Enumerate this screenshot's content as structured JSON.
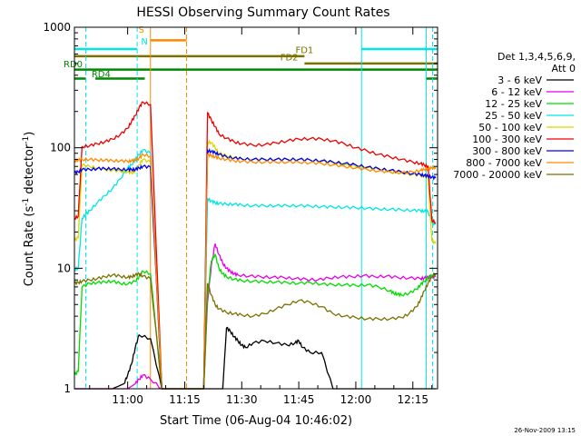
{
  "chart_data": {
    "type": "line",
    "title": "HESSI Observing Summary Count Rates",
    "xlabel": "Start Time (06-Aug-04 10:46:02)",
    "ylabel_main": "Count Rate (s",
    "ylabel_sup1": "-1",
    "ylabel_mid": " detector",
    "ylabel_sup2": "-1",
    "ylabel_end": ")",
    "footer": "26-Nov-2009 13:15",
    "xlim": [
      46.0,
      141.5
    ],
    "ylim": [
      1,
      1000
    ],
    "yscale": "log",
    "x_unit_note": "minutes after 10:00",
    "x_ticks": [
      {
        "value": 60,
        "label": "11:00"
      },
      {
        "value": 75,
        "label": "11:15"
      },
      {
        "value": 90,
        "label": "11:30"
      },
      {
        "value": 105,
        "label": "11:45"
      },
      {
        "value": 120,
        "label": "12:00"
      },
      {
        "value": 135,
        "label": "12:15"
      }
    ],
    "y_ticks": [
      {
        "value": 1,
        "label": "1"
      },
      {
        "value": 10,
        "label": "10"
      },
      {
        "value": 100,
        "label": "100"
      },
      {
        "value": 1000,
        "label": "1000"
      }
    ],
    "legend": {
      "header1": "Det 1,3,4,5,6,9,",
      "header2": "Att 0",
      "placement": "right"
    },
    "series": [
      {
        "name": "3 - 6 keV",
        "color": "#000000",
        "x": [
          46,
          47,
          50,
          53,
          56,
          59,
          60,
          61,
          62,
          63,
          66,
          69,
          70,
          71,
          72,
          75,
          77,
          78,
          79,
          80,
          84,
          85,
          86,
          87,
          88,
          89,
          90,
          91,
          93,
          96,
          99,
          102,
          104,
          105,
          106,
          108,
          111,
          114,
          117,
          120,
          123,
          126,
          129,
          132,
          135,
          138,
          139,
          140,
          141
        ],
        "y": [
          1,
          1,
          1,
          1,
          1,
          1.1,
          1.3,
          1.6,
          2.2,
          2.8,
          2.6,
          1,
          1,
          1,
          1,
          1,
          1,
          1,
          1,
          1,
          1,
          1,
          3.2,
          3,
          2.7,
          2.5,
          2.3,
          2.2,
          2.4,
          2.5,
          2.4,
          2.3,
          2.4,
          2.5,
          2.2,
          2,
          2,
          1,
          1,
          1,
          1,
          1,
          1,
          1,
          1,
          1,
          1,
          1,
          1
        ]
      },
      {
        "name": "6 - 12 keV",
        "color": "#e600e6",
        "x": [
          46,
          48,
          50,
          53,
          56,
          58,
          60,
          62,
          63,
          64,
          66,
          69,
          72,
          75,
          77,
          80,
          81,
          82,
          83,
          84,
          85,
          86,
          87,
          88,
          89,
          92,
          95,
          98,
          101,
          104,
          107,
          110,
          113,
          116,
          119,
          122,
          125,
          128,
          131,
          134,
          137,
          138,
          139,
          140,
          141
        ],
        "y": [
          1,
          1,
          1,
          1,
          1,
          1,
          1,
          1.1,
          1.2,
          1.3,
          1.2,
          1,
          1,
          1,
          1,
          1,
          5.2,
          10.5,
          16,
          13,
          11,
          10,
          9.4,
          9,
          8.8,
          8.6,
          8.5,
          8.4,
          8.4,
          8.2,
          8.1,
          8,
          8.3,
          8.5,
          8.5,
          8.7,
          8.5,
          8.6,
          8.4,
          8.3,
          8.2,
          8.3,
          8.4,
          8.5,
          8.5
        ]
      },
      {
        "name": "12 - 25 keV",
        "color": "#00dd00",
        "x": [
          46,
          47,
          48,
          50,
          52,
          54,
          56,
          58,
          60,
          62,
          63,
          64,
          66,
          69,
          72,
          75,
          77,
          80,
          81,
          82,
          83,
          84,
          85,
          86,
          88,
          90,
          93,
          96,
          99,
          102,
          105,
          108,
          111,
          114,
          117,
          120,
          123,
          126,
          129,
          130,
          131,
          132,
          134,
          136,
          137,
          138,
          139,
          140,
          141
        ],
        "y": [
          1.3,
          1.4,
          7,
          7.5,
          7.6,
          7.7,
          7.8,
          7.5,
          7.4,
          7.8,
          8.5,
          9.5,
          9,
          1,
          1,
          1,
          1,
          1,
          5.8,
          11.5,
          13,
          10,
          9,
          8.5,
          8.1,
          7.9,
          7.8,
          7.7,
          7.7,
          7.6,
          7.5,
          7.6,
          7.4,
          7.3,
          7.3,
          7.2,
          7.3,
          7.0,
          6.5,
          6.2,
          6.1,
          6.0,
          6.2,
          6.7,
          7.3,
          7.8,
          8.3,
          8.7,
          9.0
        ]
      },
      {
        "name": "25 - 50 keV",
        "color": "#00e6e6",
        "x": [
          46,
          47,
          48,
          49,
          50,
          52,
          54,
          56,
          58,
          60,
          61,
          62,
          63,
          64,
          66,
          69,
          72,
          75,
          77,
          80,
          81,
          82,
          83,
          84,
          86,
          88,
          90,
          93,
          96,
          99,
          102,
          105,
          108,
          111,
          114,
          117,
          120,
          123,
          126,
          129,
          132,
          135,
          137,
          138,
          139,
          140,
          141
        ],
        "y": [
          9.8,
          10,
          26,
          28,
          30,
          35,
          40,
          46,
          55,
          68,
          72,
          80,
          88,
          96,
          90,
          1,
          1,
          1,
          1,
          1,
          38,
          36,
          35,
          34.5,
          34,
          34,
          33.5,
          33,
          33,
          33,
          33,
          33,
          32.8,
          32.5,
          32.2,
          32,
          31.8,
          31.5,
          31,
          30.8,
          30.5,
          30.3,
          30,
          29.8,
          29.6,
          24,
          23
        ]
      },
      {
        "name": "50 - 100 keV",
        "color": "#d8d800",
        "x": [
          46,
          47,
          48,
          50,
          52,
          54,
          56,
          58,
          60,
          61,
          62,
          63,
          64,
          66,
          69,
          72,
          75,
          77,
          80,
          81,
          82,
          83,
          84,
          86,
          88,
          90,
          93,
          96,
          99,
          102,
          105,
          108,
          111,
          114,
          117,
          120,
          123,
          126,
          129,
          132,
          135,
          137,
          138,
          139,
          140,
          141
        ],
        "y": [
          17,
          18,
          72,
          70,
          68,
          66,
          65,
          64,
          63,
          62,
          64,
          72,
          80,
          76,
          1,
          1,
          1,
          1,
          1,
          112,
          110,
          100,
          90,
          86,
          83,
          81,
          80,
          80,
          80,
          80,
          80,
          79,
          77,
          75,
          72,
          70,
          68,
          66,
          64,
          62,
          60,
          59,
          58,
          57,
          17,
          16
        ]
      },
      {
        "name": "100 - 300 keV",
        "color": "#ee0000",
        "x": [
          46,
          47,
          48,
          50,
          52,
          54,
          56,
          58,
          60,
          61,
          62,
          63,
          64,
          66,
          69,
          72,
          75,
          77,
          80,
          81,
          82,
          83,
          84,
          86,
          88,
          90,
          93,
          96,
          99,
          102,
          105,
          108,
          111,
          114,
          117,
          120,
          123,
          126,
          129,
          132,
          135,
          137,
          138,
          139,
          140,
          141
        ],
        "y": [
          26,
          27,
          102,
          104,
          108,
          112,
          118,
          128,
          145,
          165,
          185,
          215,
          240,
          228,
          1,
          1,
          1,
          1,
          1,
          195,
          170,
          150,
          130,
          120,
          112,
          108,
          105,
          106,
          110,
          114,
          118,
          119,
          118,
          114,
          108,
          100,
          94,
          88,
          84,
          80,
          76,
          74,
          72,
          70,
          25,
          24
        ]
      },
      {
        "name": "300 - 800 keV",
        "color": "#0000ee",
        "x": [
          46,
          47,
          48,
          50,
          52,
          54,
          56,
          58,
          60,
          61,
          62,
          63,
          64,
          66,
          69,
          72,
          75,
          77,
          80,
          81,
          82,
          83,
          84,
          86,
          88,
          90,
          93,
          96,
          99,
          102,
          105,
          108,
          111,
          114,
          117,
          120,
          123,
          126,
          129,
          132,
          135,
          137,
          138,
          139,
          140,
          141
        ],
        "y": [
          62,
          63,
          66,
          66,
          67,
          67,
          67,
          66,
          66,
          66,
          66,
          68,
          70,
          69,
          1,
          1,
          1,
          1,
          1,
          95,
          93,
          91,
          88,
          84,
          82,
          81,
          80,
          80,
          80,
          80,
          80,
          79,
          78,
          76,
          74,
          72,
          69,
          67,
          65,
          63,
          61,
          60,
          59,
          58,
          57,
          56
        ]
      },
      {
        "name": "800 - 7000 keV",
        "color": "#ff8800",
        "x": [
          46,
          47,
          48,
          50,
          52,
          54,
          56,
          58,
          60,
          61,
          62,
          63,
          64,
          66,
          69,
          72,
          75,
          77,
          80,
          81,
          82,
          83,
          84,
          86,
          88,
          90,
          93,
          96,
          99,
          102,
          105,
          108,
          111,
          114,
          117,
          120,
          123,
          126,
          129,
          132,
          135,
          137,
          138,
          139,
          140,
          141
        ],
        "y": [
          78,
          79,
          80,
          80,
          79,
          79,
          78,
          78,
          77,
          78,
          79,
          82,
          88,
          85,
          1,
          1,
          1,
          1,
          1,
          88,
          86,
          84,
          82,
          80,
          78,
          77,
          76,
          76,
          76,
          76,
          76,
          75,
          74,
          72,
          70,
          68,
          66,
          64,
          63,
          62,
          63,
          65,
          66,
          67,
          68,
          69
        ]
      },
      {
        "name": "7000 - 20000 keV",
        "color": "#7a7200",
        "x": [
          46,
          47,
          48,
          50,
          52,
          54,
          56,
          58,
          60,
          61,
          62,
          63,
          64,
          66,
          69,
          72,
          75,
          77,
          80,
          81,
          82,
          83,
          84,
          86,
          88,
          90,
          93,
          96,
          99,
          102,
          105,
          108,
          111,
          114,
          117,
          120,
          123,
          126,
          129,
          132,
          134,
          136,
          137,
          138,
          139,
          140,
          141
        ],
        "y": [
          7.5,
          7.6,
          7.8,
          8,
          8.2,
          8.5,
          8.8,
          8.6,
          8.4,
          8.5,
          8.8,
          9,
          8.6,
          8.2,
          1,
          1,
          1,
          1,
          1,
          7.5,
          6,
          5,
          4.6,
          4.3,
          4.2,
          4.1,
          4,
          4.2,
          4.6,
          5,
          5.4,
          5.2,
          4.8,
          4.2,
          4,
          3.9,
          3.8,
          3.8,
          3.8,
          3.9,
          4.2,
          4.8,
          5.5,
          6.5,
          7.5,
          8.5,
          9
        ]
      }
    ],
    "flag_labels": [
      {
        "text": "S",
        "color": "#ff8800"
      },
      {
        "text": "N",
        "color": "#00e6e6"
      },
      {
        "text": "FD1",
        "color": "#7a7200"
      },
      {
        "text": "FD2",
        "color": "#7a7200"
      },
      {
        "text": "RD0",
        "color": "#008800"
      },
      {
        "text": "RD4",
        "color": "#008800"
      }
    ],
    "flag_bars": [
      {
        "flag": "S",
        "x0": 66.0,
        "x1": 75.5,
        "y": 780,
        "color": "#ff8800",
        "width": 2.5
      },
      {
        "flag": "N-a",
        "x0": 46.0,
        "x1": 62.5,
        "y": 660,
        "color": "#00e6e6",
        "width": 2.5
      },
      {
        "flag": "N-b",
        "x0": 121.5,
        "x1": 141.5,
        "y": 660,
        "color": "#00e6e6",
        "width": 2.5
      },
      {
        "flag": "FD1",
        "x0": 46.0,
        "x1": 106.5,
        "y": 575,
        "color": "#7a7200",
        "width": 2.5
      },
      {
        "flag": "FD2",
        "x0": 106.5,
        "x1": 141.5,
        "y": 500,
        "color": "#7a7200",
        "width": 2.5
      },
      {
        "flag": "RD0",
        "x0": 46.0,
        "x1": 141.5,
        "y": 445,
        "color": "#008800",
        "width": 2.5
      },
      {
        "flag": "RD4-a",
        "x0": 46.0,
        "x1": 49.0,
        "y": 375,
        "color": "#008800",
        "width": 2.5
      },
      {
        "flag": "RD4-b",
        "x0": 51.5,
        "x1": 64.5,
        "y": 375,
        "color": "#008800",
        "width": 2.5
      },
      {
        "flag": "RD4-c",
        "x0": 138.5,
        "x1": 141.5,
        "y": 375,
        "color": "#008800",
        "width": 2.5
      }
    ],
    "vlines": [
      {
        "x": 49.0,
        "color": "#00e6e6",
        "dash": true
      },
      {
        "x": 62.5,
        "color": "#00e6e6",
        "dash": true
      },
      {
        "x": 66.0,
        "color": "#ff8800",
        "dash": false
      },
      {
        "x": 75.5,
        "color": "#ff8800",
        "dash": true
      },
      {
        "x": 121.5,
        "color": "#00e6e6",
        "dash": false
      },
      {
        "x": 138.5,
        "color": "#00e6e6",
        "dash": false
      },
      {
        "x": 140.2,
        "color": "#00e6e6",
        "dash": true
      }
    ]
  }
}
